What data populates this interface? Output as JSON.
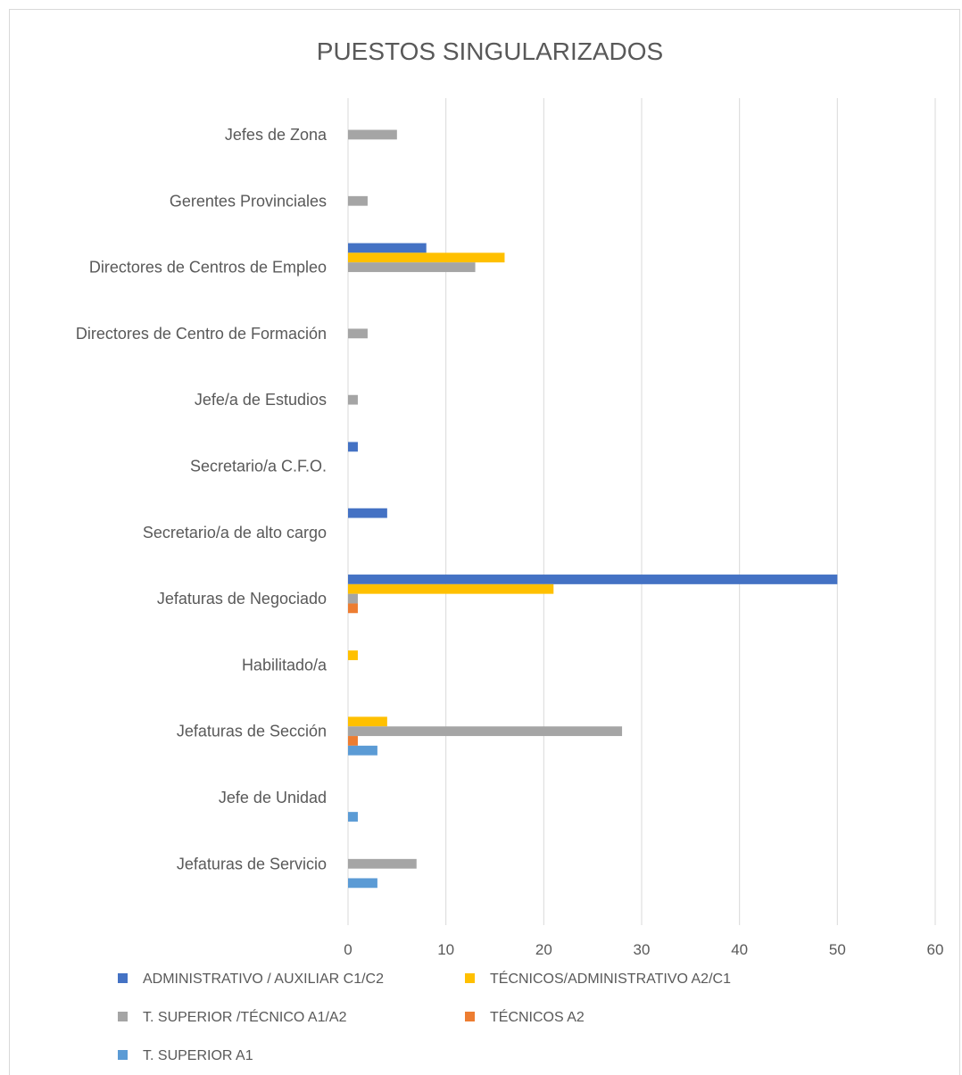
{
  "chart_data": {
    "type": "bar",
    "orientation": "horizontal",
    "title": "PUESTOS SINGULARIZADOS",
    "xlim": [
      0,
      60
    ],
    "x_ticks": [
      0,
      10,
      20,
      30,
      40,
      50,
      60
    ],
    "x_tick_labels": [
      "0",
      "10",
      "20",
      "30",
      "40",
      "50",
      "60"
    ],
    "grid": "vertical",
    "legend_position": "bottom",
    "categories": [
      "Jefes de Zona",
      "Gerentes Provinciales",
      "Directores de Centros de Empleo",
      "Directores de Centro de Formación",
      "Jefe/a de Estudios",
      "Secretario/a C.F.O.",
      "Secretario/a de alto cargo",
      "Jefaturas de Negociado",
      "Habilitado/a",
      "Jefaturas de Sección",
      "Jefe de Unidad",
      "Jefaturas de Servicio"
    ],
    "series": [
      {
        "name": "ADMINISTRATIVO /  AUXILIAR  C1/C2",
        "color": "#4472c4",
        "values": [
          0,
          0,
          8,
          0,
          0,
          1,
          4,
          50,
          0,
          0,
          0,
          0
        ]
      },
      {
        "name": "TÉCNICOS/ADMINISTRATIVO  A2/C1",
        "color": "#ffc000",
        "values": [
          0,
          0,
          16,
          0,
          0,
          0,
          0,
          21,
          1,
          4,
          0,
          0
        ]
      },
      {
        "name": "T. SUPERIOR /TÉCNICO  A1/A2",
        "color": "#a5a5a5",
        "values": [
          5,
          2,
          13,
          2,
          1,
          0,
          0,
          1,
          0,
          28,
          0,
          7
        ]
      },
      {
        "name": "TÉCNICOS  A2",
        "color": "#ed7d31",
        "values": [
          0,
          0,
          0,
          0,
          0,
          0,
          0,
          1,
          0,
          1,
          0,
          0
        ]
      },
      {
        "name": "T. SUPERIOR   A1",
        "color": "#5b9bd5",
        "values": [
          0,
          0,
          0,
          0,
          0,
          0,
          0,
          0,
          0,
          3,
          1,
          3
        ]
      }
    ]
  }
}
